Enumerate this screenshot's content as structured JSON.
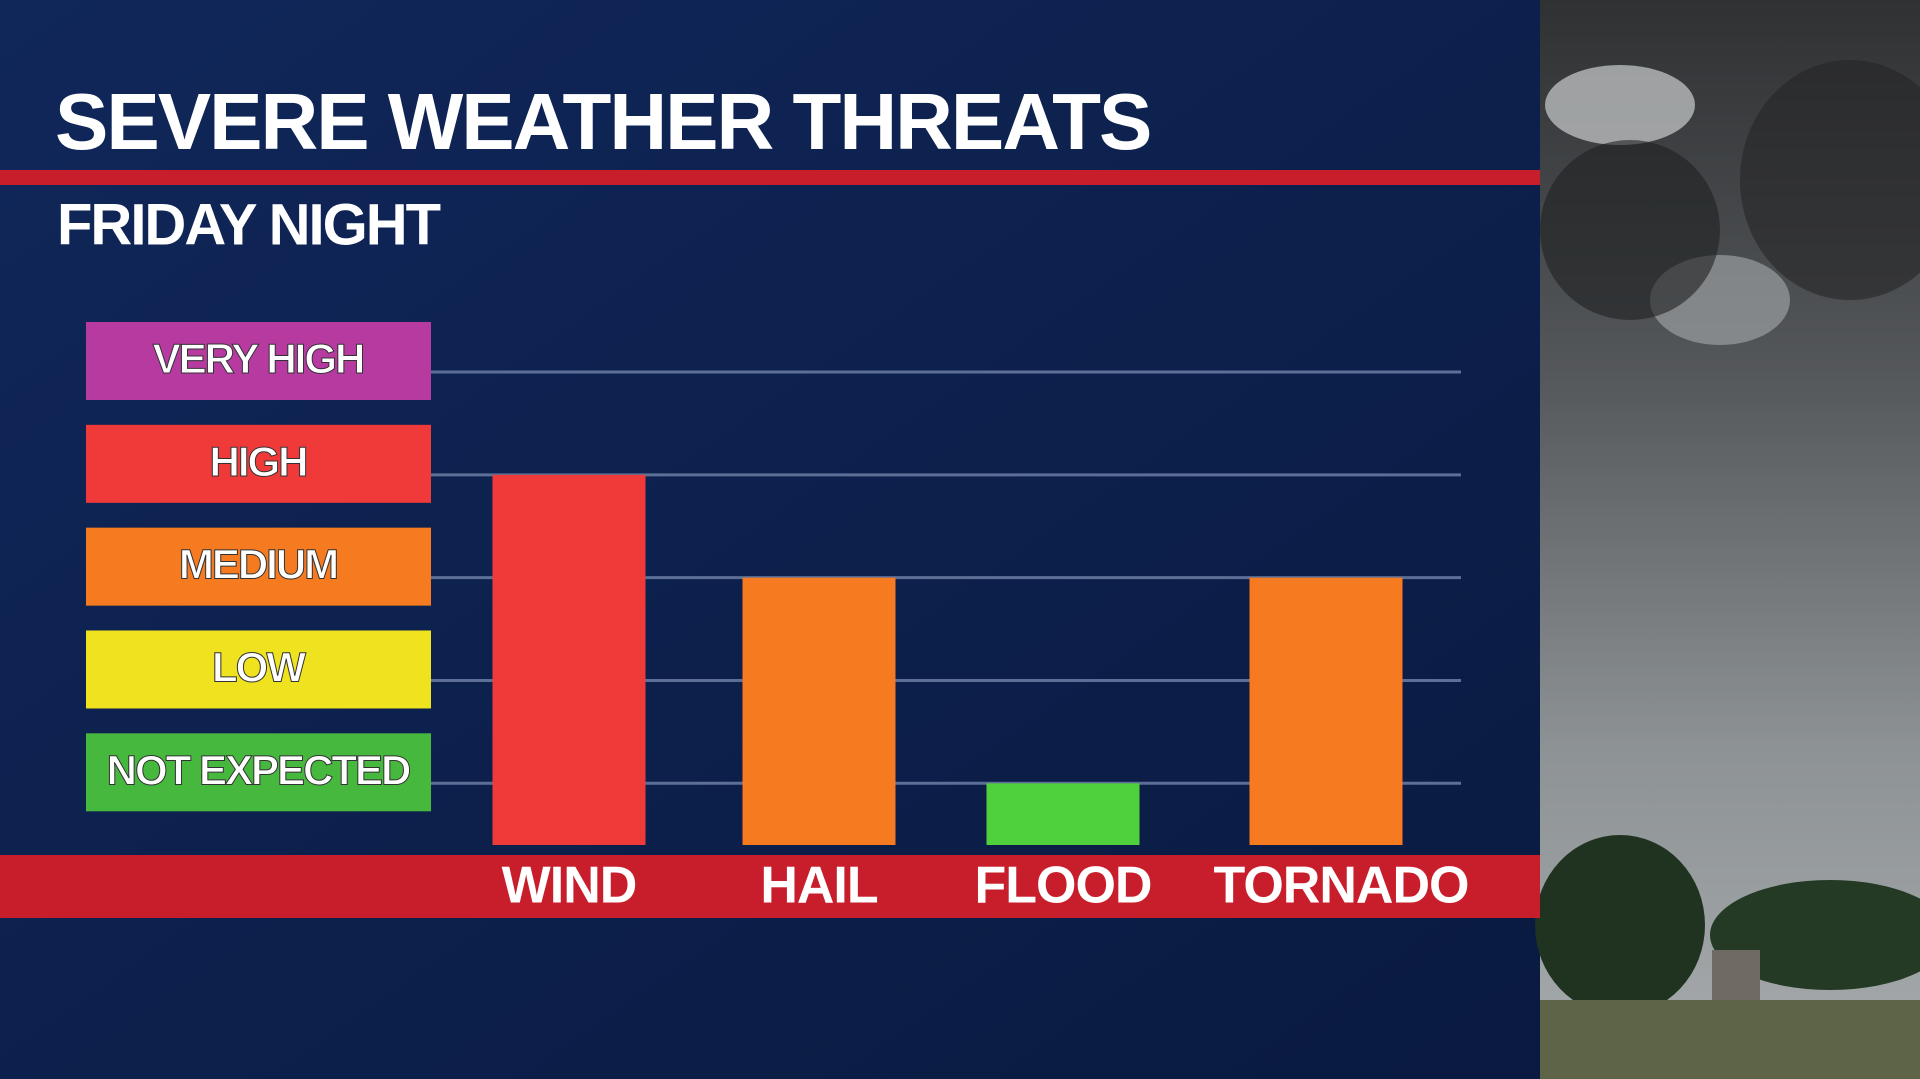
{
  "chart_data": {
    "type": "bar",
    "title": "SEVERE WEATHER THREATS",
    "subtitle": "FRIDAY NIGHT",
    "categories": [
      "WIND",
      "HAIL",
      "FLOOD",
      "TORNADO"
    ],
    "values": [
      4,
      3,
      1,
      3
    ],
    "colors": [
      "#f03a3a",
      "#f57a20",
      "#4fd13e",
      "#f57a20"
    ],
    "ylim": [
      0.4,
      5
    ],
    "yticks": [
      {
        "value": 1,
        "label": "NOT EXPECTED"
      },
      {
        "value": 2,
        "label": "LOW"
      },
      {
        "value": 3,
        "label": "MEDIUM"
      },
      {
        "value": 4,
        "label": "HIGH"
      },
      {
        "value": 5,
        "label": "VERY HIGH"
      }
    ],
    "tick_colors": [
      "#46b83e",
      "#efe21e",
      "#f57a20",
      "#f03a3a",
      "#b63aa0"
    ],
    "grid": true
  }
}
